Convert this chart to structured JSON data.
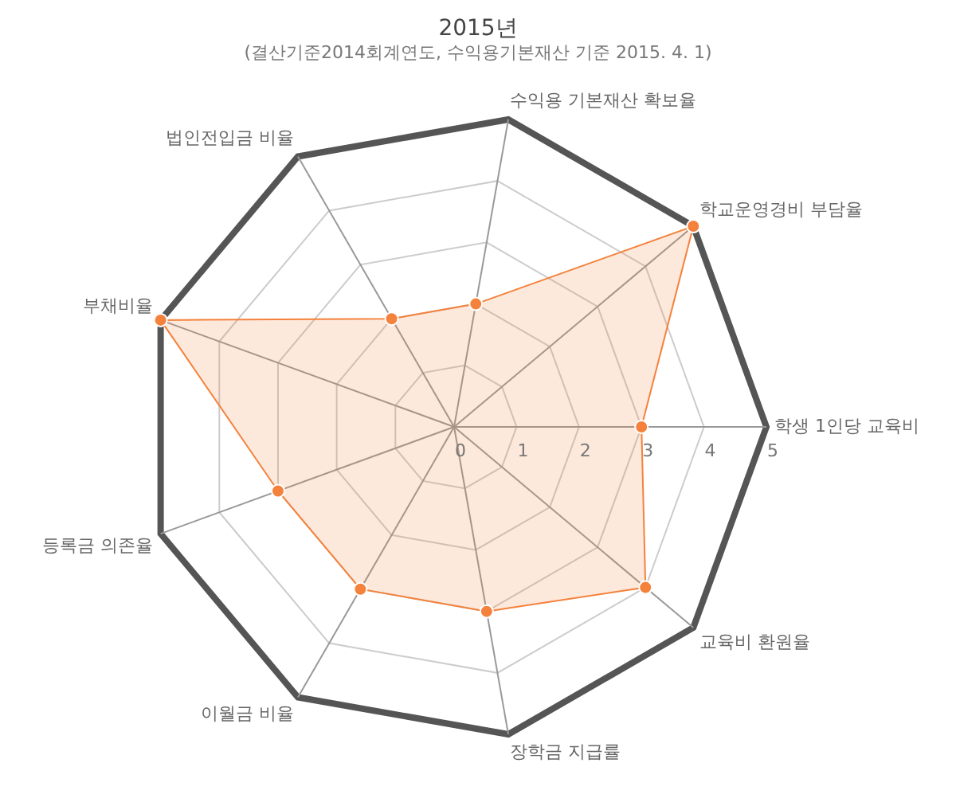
{
  "chart_data": {
    "type": "radar",
    "title": "2015년",
    "subtitle": "(결산기준2014회계연도, 수익용기본재산 기준 2015. 4. 1)",
    "categories": [
      "수익용 기본재산 확보율",
      "학교운영경비 부담율",
      "학생 1인당 교육비",
      "교육비 환원율",
      "장학금 지급률",
      "이월금 비율",
      "등록금 의존율",
      "부채비율",
      "법인전입금 비율"
    ],
    "series": [
      {
        "color": "#f4823c",
        "values": [
          2,
          5,
          3,
          4,
          3,
          3,
          3,
          5,
          2
        ]
      }
    ],
    "ylim": [
      0,
      5
    ],
    "yticks": [
      0,
      1,
      2,
      3,
      4,
      5
    ],
    "grid": true,
    "legend": false,
    "marker": "circle",
    "line_style": "solid"
  }
}
